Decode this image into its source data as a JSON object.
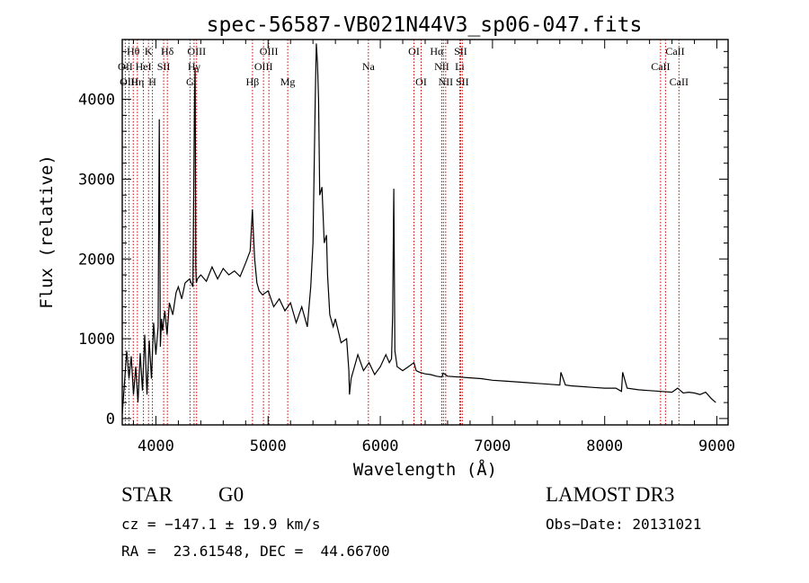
{
  "chart_data": {
    "type": "line",
    "title": "spec-56587-VB021N44V3_sp06-047.fits",
    "xlabel": "Wavelength (Å)",
    "ylabel": "Flux (relative)",
    "xlim": [
      3700,
      9100
    ],
    "ylim": [
      -80,
      4750
    ],
    "xticks": [
      4000,
      5000,
      6000,
      7000,
      8000,
      9000
    ],
    "yticks": [
      0,
      1000,
      2000,
      3000,
      4000
    ],
    "line_color": "#000000",
    "marker_color": "#cc0000",
    "series": [
      {
        "name": "flux",
        "x": [
          3700,
          3720,
          3740,
          3760,
          3780,
          3800,
          3820,
          3840,
          3860,
          3880,
          3900,
          3920,
          3940,
          3960,
          3980,
          4000,
          4020,
          4030,
          4040,
          4050,
          4060,
          4080,
          4100,
          4120,
          4150,
          4180,
          4200,
          4230,
          4260,
          4300,
          4330,
          4345,
          4350,
          4355,
          4360,
          4370,
          4400,
          4450,
          4500,
          4550,
          4600,
          4650,
          4700,
          4750,
          4800,
          4840,
          4860,
          4870,
          4880,
          4900,
          4920,
          4950,
          5000,
          5050,
          5100,
          5150,
          5200,
          5250,
          5300,
          5350,
          5380,
          5400,
          5420,
          5430,
          5440,
          5450,
          5460,
          5480,
          5500,
          5520,
          5530,
          5550,
          5580,
          5600,
          5650,
          5700,
          5720,
          5725,
          5740,
          5760,
          5800,
          5850,
          5900,
          5950,
          6000,
          6050,
          6080,
          6100,
          6110,
          6120,
          6130,
          6150,
          6200,
          6250,
          6300,
          6320,
          6350,
          6400,
          6450,
          6500,
          6550,
          6560,
          6600,
          6700,
          6800,
          6900,
          7000,
          7100,
          7200,
          7300,
          7400,
          7500,
          7600,
          7610,
          7650,
          7700,
          7800,
          7900,
          8000,
          8100,
          8150,
          8160,
          8200,
          8300,
          8400,
          8500,
          8600,
          8650,
          8700,
          8750,
          8800,
          8850,
          8900,
          8950,
          8990
        ],
        "y": [
          50,
          450,
          850,
          500,
          780,
          300,
          650,
          200,
          820,
          350,
          1050,
          300,
          980,
          500,
          1200,
          800,
          1150,
          3750,
          900,
          1250,
          1100,
          1350,
          1050,
          1450,
          1300,
          1580,
          1650,
          1500,
          1700,
          1750,
          1650,
          4100,
          4400,
          1900,
          1700,
          1750,
          1800,
          1720,
          1900,
          1750,
          1880,
          1800,
          1850,
          1780,
          1950,
          2100,
          2620,
          2300,
          2000,
          1700,
          1600,
          1550,
          1600,
          1400,
          1500,
          1350,
          1450,
          1200,
          1400,
          1150,
          1650,
          2200,
          4000,
          4700,
          4450,
          4000,
          2800,
          2900,
          2200,
          2300,
          1800,
          1300,
          1150,
          1250,
          950,
          1000,
          600,
          300,
          500,
          600,
          800,
          600,
          700,
          550,
          650,
          800,
          700,
          750,
          1300,
          2880,
          850,
          650,
          600,
          650,
          700,
          600,
          580,
          560,
          550,
          530,
          520,
          570,
          530,
          520,
          510,
          500,
          480,
          470,
          460,
          450,
          440,
          430,
          420,
          580,
          420,
          410,
          400,
          390,
          380,
          380,
          340,
          580,
          380,
          360,
          350,
          340,
          330,
          380,
          320,
          330,
          320,
          300,
          330,
          250,
          200
        ]
      }
    ],
    "lines": [
      {
        "label": "Hθ",
        "wavelength": 3798,
        "row": 1,
        "anchor": "middle"
      },
      {
        "label": "OII",
        "wavelength": 3727,
        "row": 2,
        "anchor": "middle"
      },
      {
        "label": "OIII",
        "wavelength": 3760,
        "row": 3,
        "anchor": "middle"
      },
      {
        "label": "K",
        "wavelength": 3934,
        "row": 1,
        "anchor": "middle"
      },
      {
        "label": "HeI",
        "wavelength": 3889,
        "row": 2,
        "anchor": "middle"
      },
      {
        "label": "Hη",
        "wavelength": 3835,
        "row": 3,
        "anchor": "middle"
      },
      {
        "label": "SII",
        "wavelength": 4069,
        "row": 2,
        "anchor": "middle"
      },
      {
        "label": "H",
        "wavelength": 3969,
        "row": 3,
        "anchor": "middle"
      },
      {
        "label": "Hδ",
        "wavelength": 4102,
        "row": 1,
        "anchor": "middle"
      },
      {
        "label": "OIII",
        "wavelength": 4363,
        "row": 1,
        "anchor": "middle"
      },
      {
        "label": "Hγ",
        "wavelength": 4340,
        "row": 2,
        "anchor": "middle"
      },
      {
        "label": "G",
        "wavelength": 4304,
        "row": 3,
        "anchor": "middle"
      },
      {
        "label": "OIII",
        "wavelength": 5007,
        "row": 1,
        "anchor": "middle"
      },
      {
        "label": "OIII",
        "wavelength": 4959,
        "row": 2,
        "anchor": "middle"
      },
      {
        "label": "Hβ",
        "wavelength": 4861,
        "row": 3,
        "anchor": "middle"
      },
      {
        "label": "Mg",
        "wavelength": 5175,
        "row": 3,
        "anchor": "middle"
      },
      {
        "label": "Na",
        "wavelength": 5894,
        "row": 2,
        "anchor": "middle"
      },
      {
        "label": "OI",
        "wavelength": 6300,
        "row": 1,
        "anchor": "middle"
      },
      {
        "label": "OI",
        "wavelength": 6364,
        "row": 3,
        "anchor": "middle"
      },
      {
        "label": "Hα",
        "wavelength": 6563,
        "row": 1,
        "anchor": "end"
      },
      {
        "label": "SII",
        "wavelength": 6716,
        "row": 1,
        "anchor": "middle"
      },
      {
        "label": "NII",
        "wavelength": 6548,
        "row": 2,
        "anchor": "middle"
      },
      {
        "label": "Li",
        "wavelength": 6708,
        "row": 2,
        "anchor": "middle"
      },
      {
        "label": "NII",
        "wavelength": 6583,
        "row": 3,
        "anchor": "middle"
      },
      {
        "label": "SII",
        "wavelength": 6731,
        "row": 3,
        "anchor": "middle"
      },
      {
        "label": "CaII",
        "wavelength": 8542,
        "row": 1,
        "anchor": "start"
      },
      {
        "label": "CaII",
        "wavelength": 8498,
        "row": 2,
        "anchor": "middle"
      },
      {
        "label": "CaII",
        "wavelength": 8662,
        "row": 3,
        "anchor": "middle"
      }
    ]
  },
  "info": {
    "object_class": "STAR",
    "subclass": "G0",
    "survey": "LAMOST DR3",
    "cz": "cz = −147.1 ± 19.9 km/s",
    "obs_date": "Obs−Date: 20131021",
    "coords": "RA =  23.61548, DEC =  44.66700"
  }
}
